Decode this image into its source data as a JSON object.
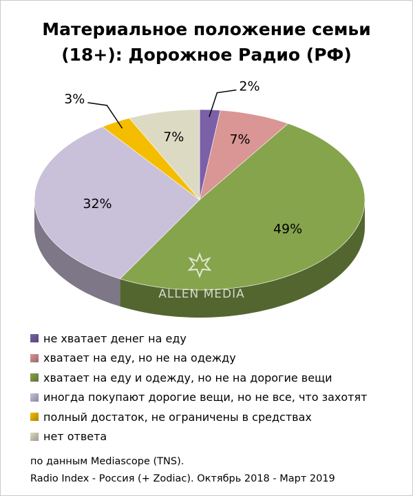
{
  "chart_data": {
    "type": "pie",
    "title": "Материальное положение семьи (18+): Дорожное Радио (РФ)",
    "labels": [
      "не хватает денег на еду",
      "хватает на еду, но не на одежду",
      "хватает на еду и одежду, но не на дорогие вещи",
      "иногда покупают дорогие вещи, но не все, что захотят",
      "полный достаток, не ограничены в средствах",
      "нет ответа"
    ],
    "values": [
      2,
      7,
      49,
      32,
      3,
      7
    ],
    "value_labels": [
      "2%",
      "7%",
      "49%",
      "32%",
      "3%",
      "7%"
    ],
    "colors": [
      "#7b60a8",
      "#d99694",
      "#86a44c",
      "#c9c0da",
      "#f5bd00",
      "#dddac4"
    ],
    "legend_position": "bottom",
    "style": "3d-pie"
  },
  "watermark": "ALLEN MEDIA",
  "footnote": {
    "line1": "по данным Mediascope (TNS).",
    "line2": "Radio Index - Россия (+ Zodiac). Октябрь 2018 - Март 2019"
  }
}
